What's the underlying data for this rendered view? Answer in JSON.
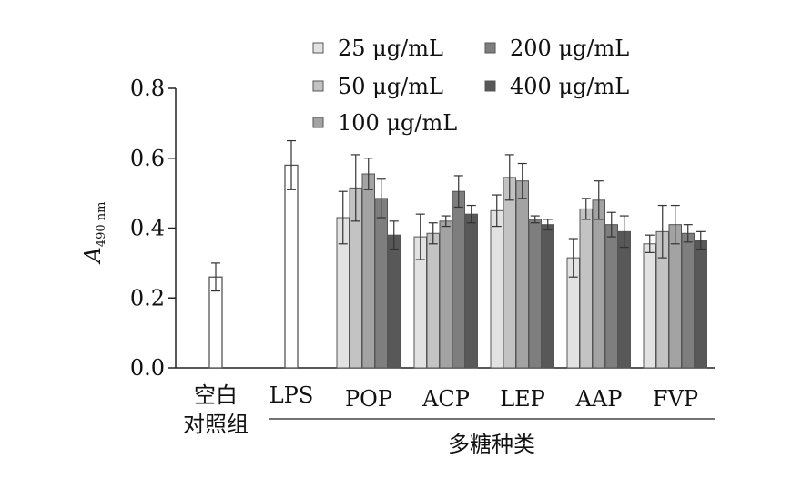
{
  "chart_data": {
    "type": "bar",
    "ylabel": "A",
    "ylabel_subscript": "490 nm",
    "xlabel": "多糖种类",
    "ylim": [
      0,
      0.8
    ],
    "yticks": [
      "0.0",
      "0.2",
      "0.4",
      "0.6",
      "0.8"
    ],
    "bar_border": "#555555",
    "control_groups": [
      {
        "label_lines": [
          "空白",
          "对照组"
        ],
        "value": 0.26,
        "error": 0.04,
        "fill": "#ffffff"
      },
      {
        "label_lines": [
          "LPS"
        ],
        "value": 0.58,
        "error": 0.07,
        "fill": "#ffffff"
      }
    ],
    "series": [
      {
        "name": "25 μg/mL",
        "color": "#e2e2e2"
      },
      {
        "name": "50 μg/mL",
        "color": "#c3c3c3"
      },
      {
        "name": "100 μg/mL",
        "color": "#a3a3a3"
      },
      {
        "name": "200 μg/mL",
        "color": "#7e7e7e"
      },
      {
        "name": "400 μg/mL",
        "color": "#585858"
      }
    ],
    "categories": [
      "POP",
      "ACP",
      "LEP",
      "AAP",
      "FVP"
    ],
    "values": [
      [
        0.43,
        0.515,
        0.555,
        0.485,
        0.38
      ],
      [
        0.375,
        0.385,
        0.42,
        0.505,
        0.44
      ],
      [
        0.45,
        0.545,
        0.535,
        0.425,
        0.41
      ],
      [
        0.315,
        0.455,
        0.48,
        0.41,
        0.39
      ],
      [
        0.355,
        0.39,
        0.41,
        0.385,
        0.365
      ]
    ],
    "errors": [
      [
        0.075,
        0.095,
        0.045,
        0.055,
        0.04
      ],
      [
        0.065,
        0.03,
        0.015,
        0.045,
        0.025
      ],
      [
        0.045,
        0.065,
        0.05,
        0.01,
        0.015
      ],
      [
        0.055,
        0.03,
        0.055,
        0.035,
        0.045
      ],
      [
        0.025,
        0.075,
        0.055,
        0.025,
        0.025
      ]
    ]
  }
}
